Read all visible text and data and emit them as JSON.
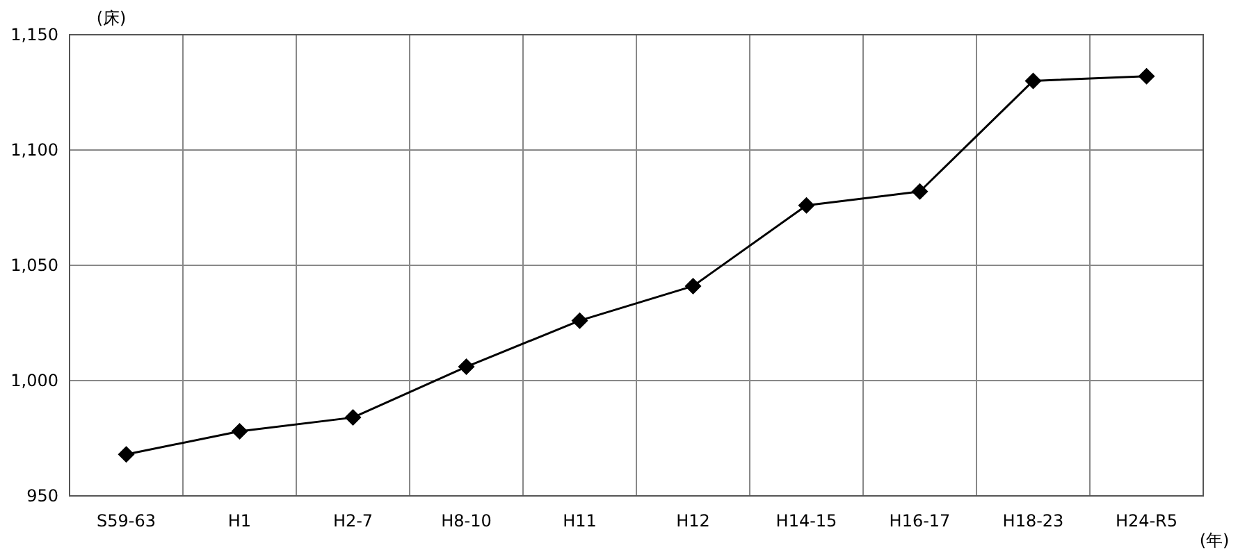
{
  "chart_data": {
    "type": "line",
    "ylabel": "(床)",
    "xlabel": "(年)",
    "categories": [
      "S59-63",
      "H1",
      "H2-7",
      "H8-10",
      "H11",
      "H12",
      "H14-15",
      "H16-17",
      "H18-23",
      "H24-R5"
    ],
    "series": [
      {
        "color": "#000000",
        "values": [
          968,
          978,
          984,
          1006,
          1026,
          1041,
          1076,
          1082,
          1130,
          1132
        ]
      }
    ],
    "ylim": [
      950,
      1150
    ],
    "yticks": [
      {
        "value": 950,
        "label": "950"
      },
      {
        "value": 1000,
        "label": "1,000"
      },
      {
        "value": 1050,
        "label": "1,050"
      },
      {
        "value": 1100,
        "label": "1,100"
      },
      {
        "value": 1150,
        "label": "1,150"
      }
    ],
    "grid": true,
    "marker": "diamond",
    "line_style": "solid"
  }
}
